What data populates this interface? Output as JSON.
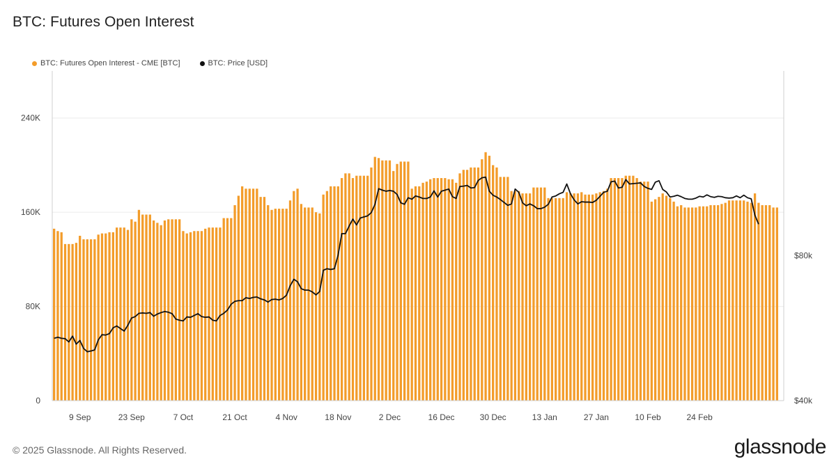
{
  "title": "BTC: Futures Open Interest",
  "footer": "© 2025 Glassnode. All Rights Reserved.",
  "brand": "glassnode",
  "colors": {
    "bar": "#f39c2a",
    "line": "#111111",
    "grid": "#ececec",
    "axis": "#cfcfcf"
  },
  "chart_data": {
    "type": "bar",
    "title": "BTC: Futures Open Interest",
    "legend_position": "top-left",
    "grid": true,
    "x_ticks": [
      "9 Sep",
      "23 Sep",
      "7 Oct",
      "21 Oct",
      "4 Nov",
      "18 Nov",
      "2 Dec",
      "16 Dec",
      "30 Dec",
      "13 Jan",
      "27 Jan",
      "10 Feb",
      "24 Feb"
    ],
    "y_left": {
      "ticks": [
        "0",
        "80K",
        "160K",
        "240K"
      ],
      "range": [
        0,
        280000
      ]
    },
    "y_right": {
      "ticks": [
        "$40k",
        "$80k"
      ],
      "range": [
        40000,
        131000
      ]
    },
    "series": [
      {
        "name": "BTC: Futures Open Interest - CME [BTC]",
        "kind": "bar",
        "axis": "left",
        "values": [
          146000,
          144000,
          143000,
          133000,
          133000,
          133000,
          134000,
          140000,
          137000,
          137000,
          137000,
          137000,
          141000,
          142000,
          142000,
          143000,
          143000,
          147000,
          147000,
          147000,
          145000,
          154000,
          152000,
          162000,
          158000,
          158000,
          158000,
          153000,
          151000,
          149000,
          153000,
          154000,
          154000,
          154000,
          154000,
          144000,
          142000,
          143000,
          144000,
          144000,
          144000,
          146000,
          147000,
          147000,
          147000,
          147000,
          155000,
          155000,
          155000,
          166000,
          174000,
          182000,
          180000,
          180000,
          180000,
          180000,
          173000,
          173000,
          166000,
          162000,
          163000,
          163000,
          163000,
          163000,
          170000,
          178000,
          180000,
          167000,
          164000,
          164000,
          164000,
          160000,
          159000,
          175000,
          178000,
          182000,
          182000,
          182000,
          189000,
          193000,
          193000,
          189000,
          191000,
          191000,
          191000,
          191000,
          198000,
          207000,
          206000,
          204000,
          204000,
          204000,
          195000,
          201000,
          203000,
          203000,
          203000,
          180000,
          182000,
          182000,
          185000,
          186000,
          188000,
          189000,
          189000,
          189000,
          189000,
          188000,
          188000,
          185000,
          193000,
          196000,
          196000,
          198000,
          198000,
          198000,
          205000,
          211000,
          208000,
          200000,
          198000,
          190000,
          190000,
          190000,
          178000,
          178000,
          178000,
          176000,
          176000,
          176000,
          181000,
          181000,
          181000,
          181000,
          172000,
          172000,
          172000,
          172000,
          172000,
          177000,
          176000,
          176000,
          176000,
          177000,
          175000,
          175000,
          175000,
          176000,
          177000,
          178000,
          180000,
          189000,
          189000,
          189000,
          189000,
          191000,
          191000,
          191000,
          189000,
          186000,
          186000,
          186000,
          169000,
          171000,
          173000,
          176000,
          174000,
          172000,
          169000,
          165000,
          166000,
          164000,
          164000,
          164000,
          164000,
          165000,
          165000,
          165000,
          166000,
          166000,
          166000,
          167000,
          168000,
          170000,
          170000,
          170000,
          170000,
          170000,
          169000,
          168000,
          176000,
          168000,
          166000,
          166000,
          166000,
          164000,
          164000
        ]
      },
      {
        "name": "BTC: Price [USD]",
        "kind": "line",
        "axis": "right",
        "values": [
          57200,
          57500,
          57200,
          57100,
          56200,
          57800,
          55600,
          56600,
          54400,
          53500,
          53700,
          54000,
          56800,
          58200,
          58100,
          58500,
          60100,
          60600,
          59900,
          59200,
          60800,
          62800,
          63200,
          64100,
          64200,
          64100,
          64300,
          63300,
          63900,
          64300,
          64600,
          64400,
          64000,
          62500,
          62200,
          62000,
          63100,
          63000,
          63500,
          64000,
          63200,
          63000,
          63100,
          62200,
          62000,
          63500,
          64100,
          65000,
          66600,
          67400,
          67600,
          67600,
          68400,
          68200,
          68500,
          68600,
          68100,
          67800,
          67200,
          67900,
          68000,
          67800,
          68200,
          69100,
          71700,
          73500,
          72800,
          70900,
          70500,
          70500,
          70000,
          69200,
          70100,
          76000,
          76400,
          76200,
          76400,
          80200,
          86100,
          86100,
          88200,
          90100,
          88500,
          90400,
          90700,
          91000,
          91900,
          94200,
          98500,
          98100,
          97800,
          98000,
          97800,
          96900,
          94600,
          94200,
          96000,
          95600,
          96500,
          96200,
          95800,
          95800,
          96200,
          97900,
          96200,
          97800,
          98100,
          98400,
          96300,
          95800,
          99100,
          99200,
          99400,
          98700,
          98800,
          100800,
          101500,
          101700,
          97800,
          96700,
          96200,
          95500,
          94700,
          93900,
          94300,
          98400,
          97500,
          94600,
          93800,
          94300,
          93800,
          93000,
          93000,
          93400,
          94200,
          96200,
          96500,
          97100,
          97500,
          99800,
          97100,
          95400,
          94300,
          94900,
          94800,
          94800,
          94700,
          95300,
          96400,
          97500,
          97800,
          100400,
          100600,
          98700,
          98900,
          101000,
          99800,
          99900,
          100000,
          100100,
          99100,
          98600,
          98300,
          100300,
          100700,
          98300,
          97600,
          96200,
          96400,
          96700,
          96300,
          95800,
          95600,
          95600,
          95900,
          96400,
          96200,
          96800,
          96300,
          96100,
          96400,
          96300,
          96000,
          95900,
          96000,
          96500,
          96000,
          96700,
          96000,
          95700,
          91200,
          88700
        ]
      }
    ]
  }
}
